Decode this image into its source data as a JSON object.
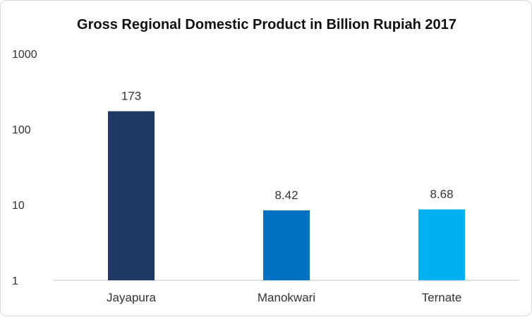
{
  "chart_data": {
    "type": "bar",
    "title": "Gross Regional Domestic Product in Billion Rupiah 2017",
    "xlabel": "",
    "ylabel": "",
    "y_scale": "log",
    "ylim": [
      1,
      1000
    ],
    "y_ticks": [
      {
        "value": 1,
        "label": "1"
      },
      {
        "value": 10,
        "label": "10"
      },
      {
        "value": 100,
        "label": "100"
      },
      {
        "value": 1000,
        "label": "1000"
      }
    ],
    "grid": false,
    "legend": "none",
    "categories": [
      "Jayapura",
      "Manokwari",
      "Ternate"
    ],
    "values": [
      173,
      8.42,
      8.68
    ],
    "data_labels": [
      "173",
      "8.42",
      "8.68"
    ],
    "bar_colors": [
      "#1f3864",
      "#0070c0",
      "#00b0f0"
    ],
    "axis_color": "#d9d9d9"
  }
}
